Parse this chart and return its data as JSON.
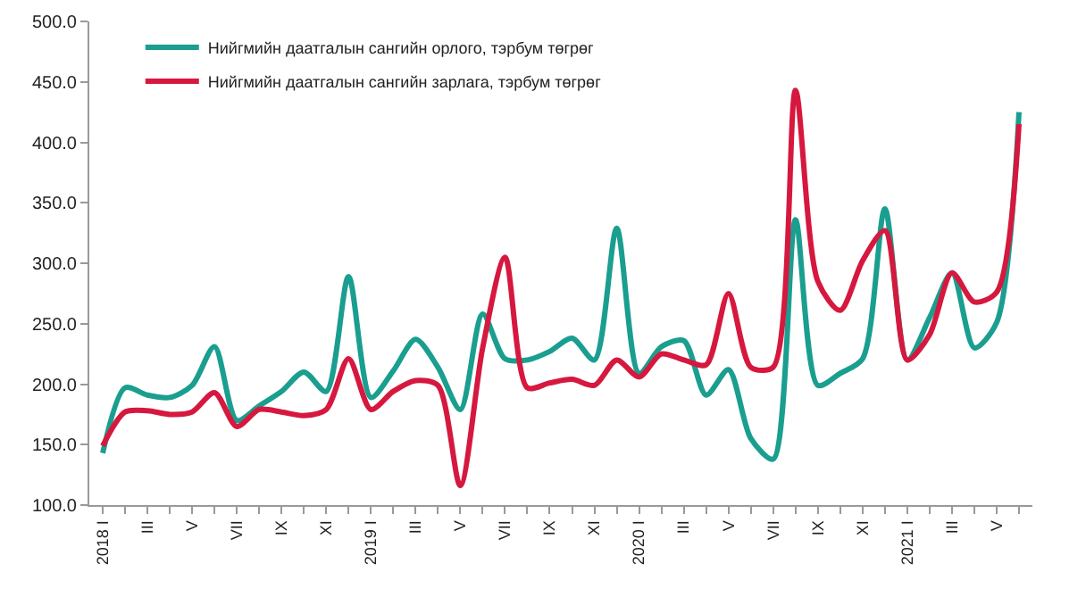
{
  "chart_data": {
    "type": "line",
    "categories": [
      "2018 I",
      null,
      "III",
      null,
      "V",
      null,
      "VII",
      null,
      "IX",
      null,
      "XI",
      null,
      "2019 I",
      null,
      "III",
      null,
      "V",
      null,
      "VII",
      null,
      "IX",
      null,
      "XI",
      null,
      "2020 I",
      null,
      "III",
      null,
      "V",
      null,
      "VII",
      null,
      "IX",
      null,
      "XI",
      null,
      "2021 I",
      null,
      "III",
      null,
      "V",
      null
    ],
    "series": [
      {
        "name": "Нийгмийн даатгалын сангийн орлого, тэрбум төгрөг",
        "color": "#1a9e8f",
        "values": [
          143,
          197,
          191,
          189,
          199,
          231,
          170,
          182,
          194,
          210,
          194,
          289,
          189,
          211,
          237,
          214,
          179,
          258,
          221,
          220,
          227,
          238,
          220,
          329,
          209,
          231,
          236,
          191,
          212,
          155,
          138,
          336,
          199,
          209,
          221,
          345,
          220,
          255,
          292,
          230,
          251,
          425
        ]
      },
      {
        "name": "Нийгмийн даатгалын сангийн зарлага, тэрбум төгрөг",
        "color": "#d6183f",
        "values": [
          149,
          177,
          178,
          175,
          177,
          193,
          165,
          179,
          177,
          174,
          179,
          221,
          179,
          194,
          203,
          199,
          116,
          230,
          305,
          197,
          201,
          204,
          199,
          220,
          206,
          225,
          220,
          216,
          275,
          214,
          214,
          443,
          285,
          261,
          302,
          327,
          220,
          241,
          292,
          268,
          276,
          415
        ]
      }
    ],
    "ylim": [
      100,
      500
    ],
    "yticks": [
      {
        "value": 100,
        "label": "100.0"
      },
      {
        "value": 150,
        "label": "150.0"
      },
      {
        "value": 200,
        "label": "200.0"
      },
      {
        "value": 250,
        "label": "250.0"
      },
      {
        "value": 300,
        "label": "300.0"
      },
      {
        "value": 350,
        "label": "350.0"
      },
      {
        "value": 400,
        "label": "400.0"
      },
      {
        "value": 450,
        "label": "450.0"
      },
      {
        "value": 500,
        "label": "500.0"
      }
    ],
    "grid": false,
    "legend": "top left",
    "marker": "none",
    "line_style": "solid"
  }
}
